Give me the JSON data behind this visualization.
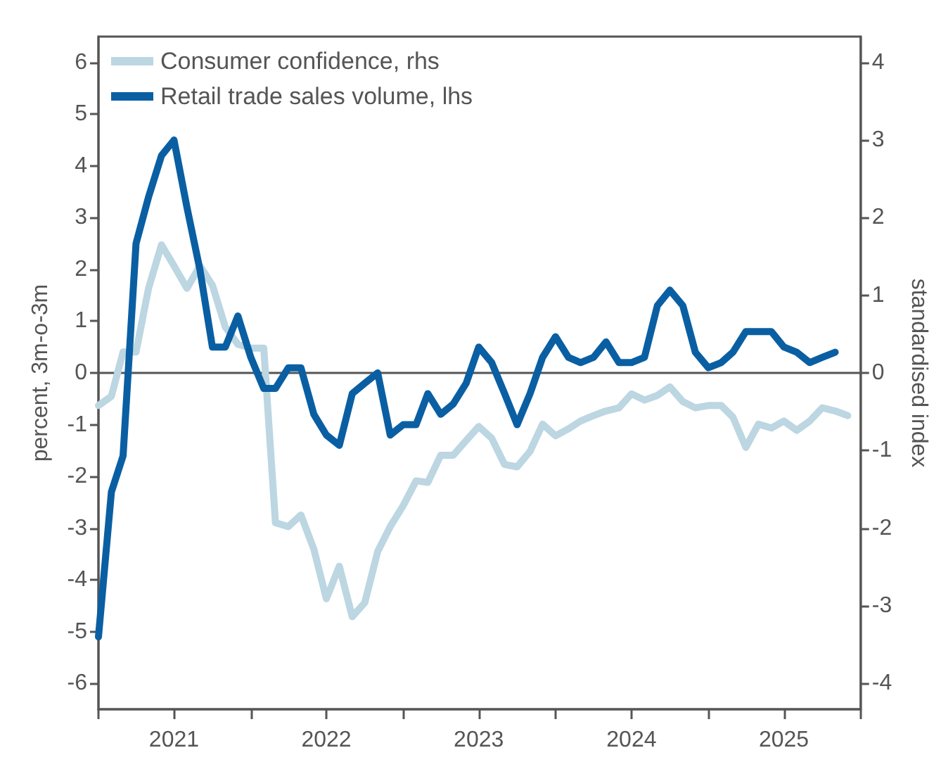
{
  "chart_data": {
    "type": "line",
    "xlabel": null,
    "ylabel": "percent, 3m-o-3m",
    "y2label": "standardised index",
    "x": [
      "2021-01",
      "2021-02",
      "2021-03",
      "2021-04",
      "2021-05",
      "2021-06",
      "2021-07",
      "2021-08",
      "2021-09",
      "2021-10",
      "2021-11",
      "2021-12",
      "2022-01",
      "2022-02",
      "2022-03",
      "2022-04",
      "2022-05",
      "2022-06",
      "2022-07",
      "2022-08",
      "2022-09",
      "2022-10",
      "2022-11",
      "2022-12",
      "2023-01",
      "2023-02",
      "2023-03",
      "2023-04",
      "2023-05",
      "2023-06",
      "2023-07",
      "2023-08",
      "2023-09",
      "2023-10",
      "2023-11",
      "2023-12",
      "2024-01",
      "2024-02",
      "2024-03",
      "2024-04",
      "2024-05",
      "2024-06",
      "2024-07",
      "2024-08",
      "2024-09",
      "2024-10",
      "2024-11",
      "2024-12",
      "2025-01",
      "2025-02",
      "2025-03",
      "2025-04",
      "2025-05",
      "2025-06",
      "2025-07",
      "2025-08",
      "2025-09",
      "2025-10",
      "2025-11",
      "2025-12"
    ],
    "series": [
      {
        "name": "Consumer confidence, rhs",
        "color": "#bcd6e2",
        "axis": "y2",
        "values": [
          -0.42,
          -0.3,
          0.27,
          0.27,
          1.09,
          1.65,
          1.38,
          1.09,
          1.38,
          1.13,
          0.59,
          0.37,
          0.32,
          0.32,
          -1.93,
          -1.98,
          -1.83,
          -2.27,
          -2.91,
          -2.49,
          -3.14,
          -2.96,
          -2.3,
          -1.98,
          -1.71,
          -1.39,
          -1.41,
          -1.06,
          -1.06,
          -0.87,
          -0.69,
          -0.84,
          -1.18,
          -1.21,
          -1.01,
          -0.66,
          -0.81,
          -0.72,
          -0.62,
          -0.55,
          -0.49,
          -0.45,
          -0.27,
          -0.35,
          -0.29,
          -0.18,
          -0.37,
          -0.45,
          -0.42,
          -0.42,
          -0.57,
          -0.96,
          -0.66,
          -0.71,
          -0.62,
          -0.74,
          -0.62,
          -0.45,
          -0.49,
          -0.55
        ]
      },
      {
        "name": "Retail trade sales volume, lhs",
        "color": "#0a5fa3",
        "axis": "y",
        "values": [
          -5.1,
          -2.3,
          -1.6,
          2.5,
          3.4,
          4.2,
          4.5,
          3.2,
          2.0,
          0.5,
          0.5,
          1.1,
          0.3,
          -0.3,
          -0.3,
          0.1,
          0.1,
          -0.8,
          -1.2,
          -1.4,
          -0.4,
          -0.2,
          0.0,
          -1.2,
          -1.0,
          -1.0,
          -0.4,
          -0.8,
          -0.6,
          -0.2,
          0.5,
          0.2,
          -0.4,
          -1.0,
          -0.4,
          0.3,
          0.7,
          0.3,
          0.2,
          0.3,
          0.6,
          0.2,
          0.2,
          0.3,
          1.3,
          1.6,
          1.3,
          0.4,
          0.1,
          0.2,
          0.4,
          0.8,
          0.8,
          0.8,
          0.5,
          0.4,
          0.2,
          0.3,
          0.4,
          null
        ]
      }
    ],
    "xlim": [
      "2021-01",
      "2026-01"
    ],
    "xticks": [
      {
        "value": "2021-01",
        "label": null
      },
      {
        "value": "2021-07",
        "label": "2021"
      },
      {
        "value": "2022-01",
        "label": null
      },
      {
        "value": "2022-07",
        "label": "2022"
      },
      {
        "value": "2023-01",
        "label": null
      },
      {
        "value": "2023-07",
        "label": "2023"
      },
      {
        "value": "2024-01",
        "label": null
      },
      {
        "value": "2024-07",
        "label": "2024"
      },
      {
        "value": "2025-01",
        "label": null
      },
      {
        "value": "2025-07",
        "label": "2025"
      },
      {
        "value": "2026-01",
        "label": null
      }
    ],
    "ylim": [
      -6.5,
      6.5
    ],
    "yticks": [
      -6,
      -5,
      -4,
      -3,
      -2,
      -1,
      0,
      1,
      2,
      3,
      4,
      5,
      6
    ],
    "y2lim": [
      -4.333,
      4.333
    ],
    "y2ticks": [
      -4,
      -3,
      -2,
      -1,
      0,
      1,
      2,
      3,
      4
    ],
    "ref_lines": [
      {
        "axis": "y",
        "value": 0,
        "color": "#555555"
      }
    ],
    "legend": "top left",
    "grid": false,
    "marker": "none",
    "line_style": "solid"
  }
}
